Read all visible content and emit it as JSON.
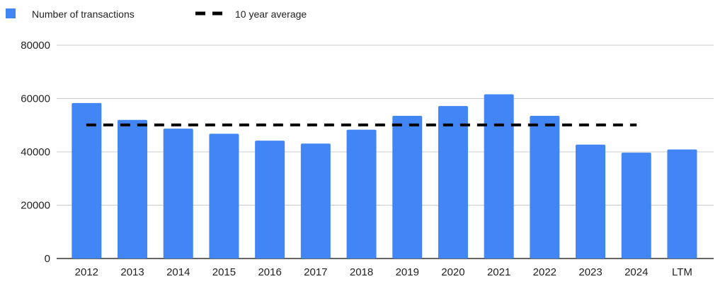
{
  "chart_data": {
    "type": "bar",
    "categories": [
      "2012",
      "2013",
      "2014",
      "2015",
      "2016",
      "2017",
      "2018",
      "2019",
      "2020",
      "2021",
      "2022",
      "2023",
      "2024",
      "LTM"
    ],
    "series": [
      {
        "name": "Number of transactions",
        "values": [
          58300,
          52000,
          48700,
          46800,
          44200,
          43100,
          48300,
          53500,
          57200,
          61600,
          53500,
          42700,
          39700,
          40900
        ],
        "color": "#4285f4"
      }
    ],
    "reference_line": {
      "name": "10 year average",
      "value": 50100,
      "from_category": "2012",
      "to_category": "2024",
      "style": "dashed",
      "color": "#000000"
    },
    "ylim": [
      0,
      80000
    ],
    "yticks": [
      "0",
      "20000",
      "40000",
      "60000",
      "80000"
    ],
    "ytick_values": [
      0,
      20000,
      40000,
      60000,
      80000
    ],
    "grid": true,
    "legend_position": "top-left",
    "title": "",
    "xlabel": "",
    "ylabel": ""
  }
}
